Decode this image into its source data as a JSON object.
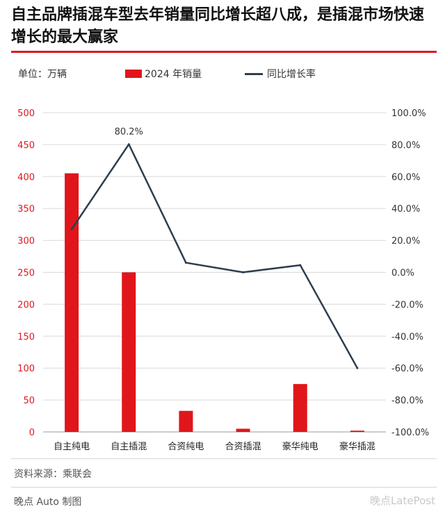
{
  "title": "自主品牌插混车型去年销量同比增长超八成，是插混市场快速增长的最大赢家",
  "unit_label": "单位：万辆",
  "source": "资料来源：乘联会",
  "credit": "晚点 Auto 制图",
  "watermark": "晚点LatePost",
  "colors": {
    "bar": "#e0161b",
    "line": "#2d3e4e",
    "title_rule": "#e0161b"
  },
  "chart_data": {
    "type": "bar",
    "categories": [
      "自主纯电",
      "自主插混",
      "合资纯电",
      "合资插混",
      "豪华纯电",
      "豪华插混"
    ],
    "series": [
      {
        "name": "2024 年销量",
        "type": "bar",
        "axis": "left",
        "values": [
          405,
          250,
          33,
          5,
          75,
          2
        ]
      },
      {
        "name": "同比增长率",
        "type": "line",
        "axis": "right",
        "values": [
          0.27,
          0.802,
          0.06,
          0.0,
          0.045,
          -0.6
        ]
      }
    ],
    "y_left": {
      "min": 0,
      "max": 500,
      "ticks": [
        "0",
        "50",
        "100",
        "150",
        "200",
        "250",
        "300",
        "350",
        "400",
        "450",
        "500"
      ]
    },
    "y_right": {
      "min": -1,
      "max": 1,
      "ticks": [
        "-100.0%",
        "-80.0%",
        "-60.0%",
        "-40.0%",
        "-20.0%",
        "0.0%",
        "20.0%",
        "40.0%",
        "60.0%",
        "80.0%",
        "100.0%"
      ]
    },
    "annotations": [
      {
        "category_index": 1,
        "series": "同比增长率",
        "text": "80.2%"
      }
    ],
    "grid": true,
    "legend": "top"
  }
}
